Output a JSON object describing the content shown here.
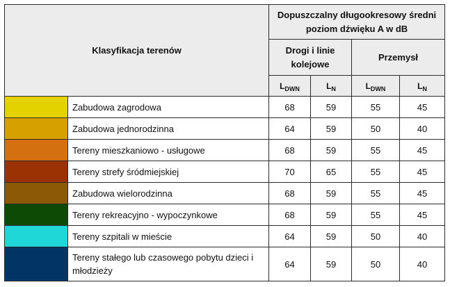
{
  "header": {
    "classification": "Klasyfikacja terenów",
    "permitted_level": "Dopuszczalny długookresowy średni poziom dźwięku A w dB",
    "roads_rail": "Drogi i linie kolejowe",
    "industry": "Przemysł",
    "ldwn_base": "L",
    "ldwn_sub": "DWN",
    "ln_base": "L",
    "ln_sub": "N"
  },
  "rows": [
    {
      "color": "#e3d200",
      "label": "Zabudowa zagrodowa",
      "roads_ldwn": "68",
      "roads_ln": "59",
      "industry_ldwn": "55",
      "industry_ln": "45"
    },
    {
      "color": "#d6a000",
      "label": "Zabudowa jednorodzinna",
      "roads_ldwn": "64",
      "roads_ln": "59",
      "industry_ldwn": "50",
      "industry_ln": "40"
    },
    {
      "color": "#d4700f",
      "label": "Tereny mieszkaniowo - usługowe",
      "roads_ldwn": "68",
      "roads_ln": "59",
      "industry_ldwn": "55",
      "industry_ln": "45"
    },
    {
      "color": "#9b3203",
      "label": "Tereny strefy śródmiejskiej",
      "roads_ldwn": "70",
      "roads_ln": "65",
      "industry_ldwn": "55",
      "industry_ln": "45"
    },
    {
      "color": "#8c5a06",
      "label": "Zabudowa wielorodzinna",
      "roads_ldwn": "68",
      "roads_ln": "59",
      "industry_ldwn": "55",
      "industry_ln": "45"
    },
    {
      "color": "#0c4a06",
      "label": "Tereny rekreacyjno - wypoczynkowe",
      "roads_ldwn": "68",
      "roads_ln": "59",
      "industry_ldwn": "55",
      "industry_ln": "45"
    },
    {
      "color": "#1fd7d6",
      "label": "Tereny szpitali w mieście",
      "roads_ldwn": "64",
      "roads_ln": "59",
      "industry_ldwn": "50",
      "industry_ln": "40"
    },
    {
      "color": "#033466",
      "label": "Tereny stałego lub czasowego pobytu dzieci i młodzieży",
      "roads_ldwn": "64",
      "roads_ln": "59",
      "industry_ldwn": "50",
      "industry_ln": "40"
    }
  ]
}
